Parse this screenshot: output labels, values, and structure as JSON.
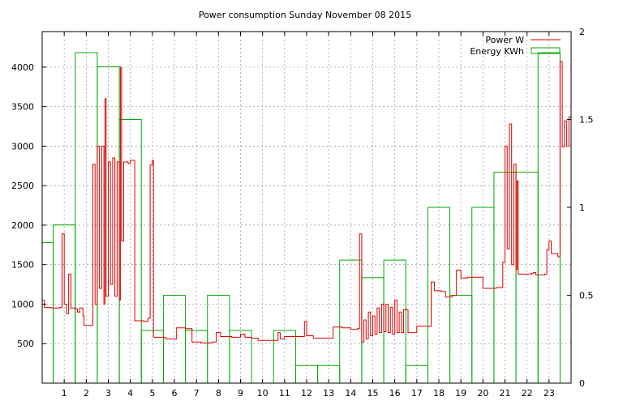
{
  "chart_data": {
    "type": "line",
    "title": "Power consumption Sunday November 08 2015",
    "xlabel": "",
    "ylabel": "",
    "x_ticks": [
      "1",
      "2",
      "3",
      "4",
      "5",
      "6",
      "7",
      "8",
      "9",
      "10",
      "11",
      "12",
      "13",
      "14",
      "15",
      "16",
      "17",
      "18",
      "19",
      "20",
      "21",
      "22",
      "23"
    ],
    "xlim": [
      0,
      24
    ],
    "y_left": {
      "ticks": [
        "500",
        "1000",
        "1500",
        "2000",
        "2500",
        "3000",
        "3500",
        "4000"
      ],
      "ylim": [
        0,
        4450
      ]
    },
    "y_right": {
      "ticks": [
        "0",
        "0.5",
        "1",
        "1.5",
        "2"
      ],
      "ylim": [
        0,
        2
      ]
    },
    "grid": true,
    "legend_position": "top-right",
    "colors": {
      "power": "#dd0000",
      "energy": "#00aa00",
      "grid": "#a0a0a0",
      "axis": "#000000"
    },
    "series": [
      {
        "name": "Power W",
        "style": "line",
        "axis": "left",
        "points": [
          [
            0.0,
            1050
          ],
          [
            0.1,
            960
          ],
          [
            0.4,
            950
          ],
          [
            0.8,
            960
          ],
          [
            0.9,
            1890
          ],
          [
            1.0,
            1000
          ],
          [
            1.1,
            880
          ],
          [
            1.2,
            1380
          ],
          [
            1.3,
            950
          ],
          [
            1.5,
            940
          ],
          [
            1.6,
            900
          ],
          [
            1.7,
            950
          ],
          [
            1.85,
            850
          ],
          [
            1.9,
            730
          ],
          [
            2.2,
            730
          ],
          [
            2.3,
            2770
          ],
          [
            2.4,
            1000
          ],
          [
            2.5,
            3000
          ],
          [
            2.6,
            1200
          ],
          [
            2.7,
            3000
          ],
          [
            2.8,
            1000
          ],
          [
            2.85,
            3600
          ],
          [
            2.9,
            1100
          ],
          [
            3.0,
            2800
          ],
          [
            3.1,
            1250
          ],
          [
            3.2,
            2850
          ],
          [
            3.3,
            1100
          ],
          [
            3.4,
            2800
          ],
          [
            3.5,
            1050
          ],
          [
            3.55,
            4000
          ],
          [
            3.6,
            1800
          ],
          [
            3.7,
            2800
          ],
          [
            3.9,
            2780
          ],
          [
            4.0,
            2820
          ],
          [
            4.2,
            790
          ],
          [
            4.6,
            780
          ],
          [
            4.8,
            820
          ],
          [
            4.9,
            2760
          ],
          [
            5.0,
            2820
          ],
          [
            5.05,
            580
          ],
          [
            5.4,
            580
          ],
          [
            5.6,
            560
          ],
          [
            6.0,
            560
          ],
          [
            6.1,
            700
          ],
          [
            6.5,
            690
          ],
          [
            6.8,
            520
          ],
          [
            7.2,
            510
          ],
          [
            7.7,
            520
          ],
          [
            7.9,
            640
          ],
          [
            8.1,
            590
          ],
          [
            8.6,
            580
          ],
          [
            9.0,
            620
          ],
          [
            9.2,
            580
          ],
          [
            9.5,
            570
          ],
          [
            9.8,
            540
          ],
          [
            10.4,
            540
          ],
          [
            10.7,
            640
          ],
          [
            10.8,
            560
          ],
          [
            11.0,
            590
          ],
          [
            11.5,
            590
          ],
          [
            11.9,
            780
          ],
          [
            12.0,
            600
          ],
          [
            12.3,
            570
          ],
          [
            12.9,
            570
          ],
          [
            13.2,
            710
          ],
          [
            13.6,
            700
          ],
          [
            14.0,
            680
          ],
          [
            14.3,
            690
          ],
          [
            14.4,
            1890
          ],
          [
            14.5,
            520
          ],
          [
            14.6,
            800
          ],
          [
            14.7,
            560
          ],
          [
            14.8,
            900
          ],
          [
            14.9,
            600
          ],
          [
            15.0,
            850
          ],
          [
            15.1,
            620
          ],
          [
            15.2,
            950
          ],
          [
            15.3,
            640
          ],
          [
            15.4,
            1000
          ],
          [
            15.5,
            650
          ],
          [
            15.6,
            1000
          ],
          [
            15.7,
            640
          ],
          [
            15.8,
            960
          ],
          [
            15.9,
            620
          ],
          [
            16.0,
            1050
          ],
          [
            16.1,
            640
          ],
          [
            16.2,
            900
          ],
          [
            16.3,
            640
          ],
          [
            16.4,
            930
          ],
          [
            16.6,
            640
          ],
          [
            16.9,
            640
          ],
          [
            17.0,
            720
          ],
          [
            17.6,
            720
          ],
          [
            17.65,
            1280
          ],
          [
            17.8,
            1170
          ],
          [
            18.1,
            1160
          ],
          [
            18.3,
            1090
          ],
          [
            18.6,
            1110
          ],
          [
            18.8,
            1430
          ],
          [
            19.0,
            1330
          ],
          [
            19.3,
            1340
          ],
          [
            19.9,
            1340
          ],
          [
            20.0,
            1200
          ],
          [
            20.6,
            1210
          ],
          [
            20.9,
            1530
          ],
          [
            21.0,
            3000
          ],
          [
            21.1,
            1700
          ],
          [
            21.2,
            3280
          ],
          [
            21.3,
            1500
          ],
          [
            21.4,
            2770
          ],
          [
            21.5,
            1440
          ],
          [
            21.55,
            2560
          ],
          [
            21.6,
            1380
          ],
          [
            22.2,
            1390
          ],
          [
            22.3,
            1400
          ],
          [
            22.4,
            1370
          ],
          [
            22.8,
            1380
          ],
          [
            22.9,
            1690
          ],
          [
            23.0,
            1800
          ],
          [
            23.1,
            1640
          ],
          [
            23.4,
            1600
          ],
          [
            23.5,
            4070
          ],
          [
            23.6,
            2990
          ],
          [
            23.7,
            3320
          ],
          [
            23.8,
            3000
          ],
          [
            23.9,
            3370
          ],
          [
            24.0,
            1700
          ]
        ]
      },
      {
        "name": "Energy KWh",
        "style": "histogram",
        "axis": "right",
        "categories": [
          "0",
          "1",
          "2",
          "3",
          "4",
          "5",
          "6",
          "7",
          "8",
          "9",
          "10",
          "11",
          "12",
          "13",
          "14",
          "15",
          "16",
          "17",
          "18",
          "19",
          "20",
          "21",
          "22",
          "23"
        ],
        "values": [
          0.8,
          0.9,
          1.88,
          1.8,
          1.5,
          0.3,
          0.5,
          0.3,
          0.5,
          0.3,
          0.0,
          0.3,
          0.1,
          0.1,
          0.7,
          0.6,
          0.7,
          0.1,
          1.0,
          0.5,
          1.0,
          1.2,
          1.2,
          1.88
        ]
      }
    ]
  }
}
